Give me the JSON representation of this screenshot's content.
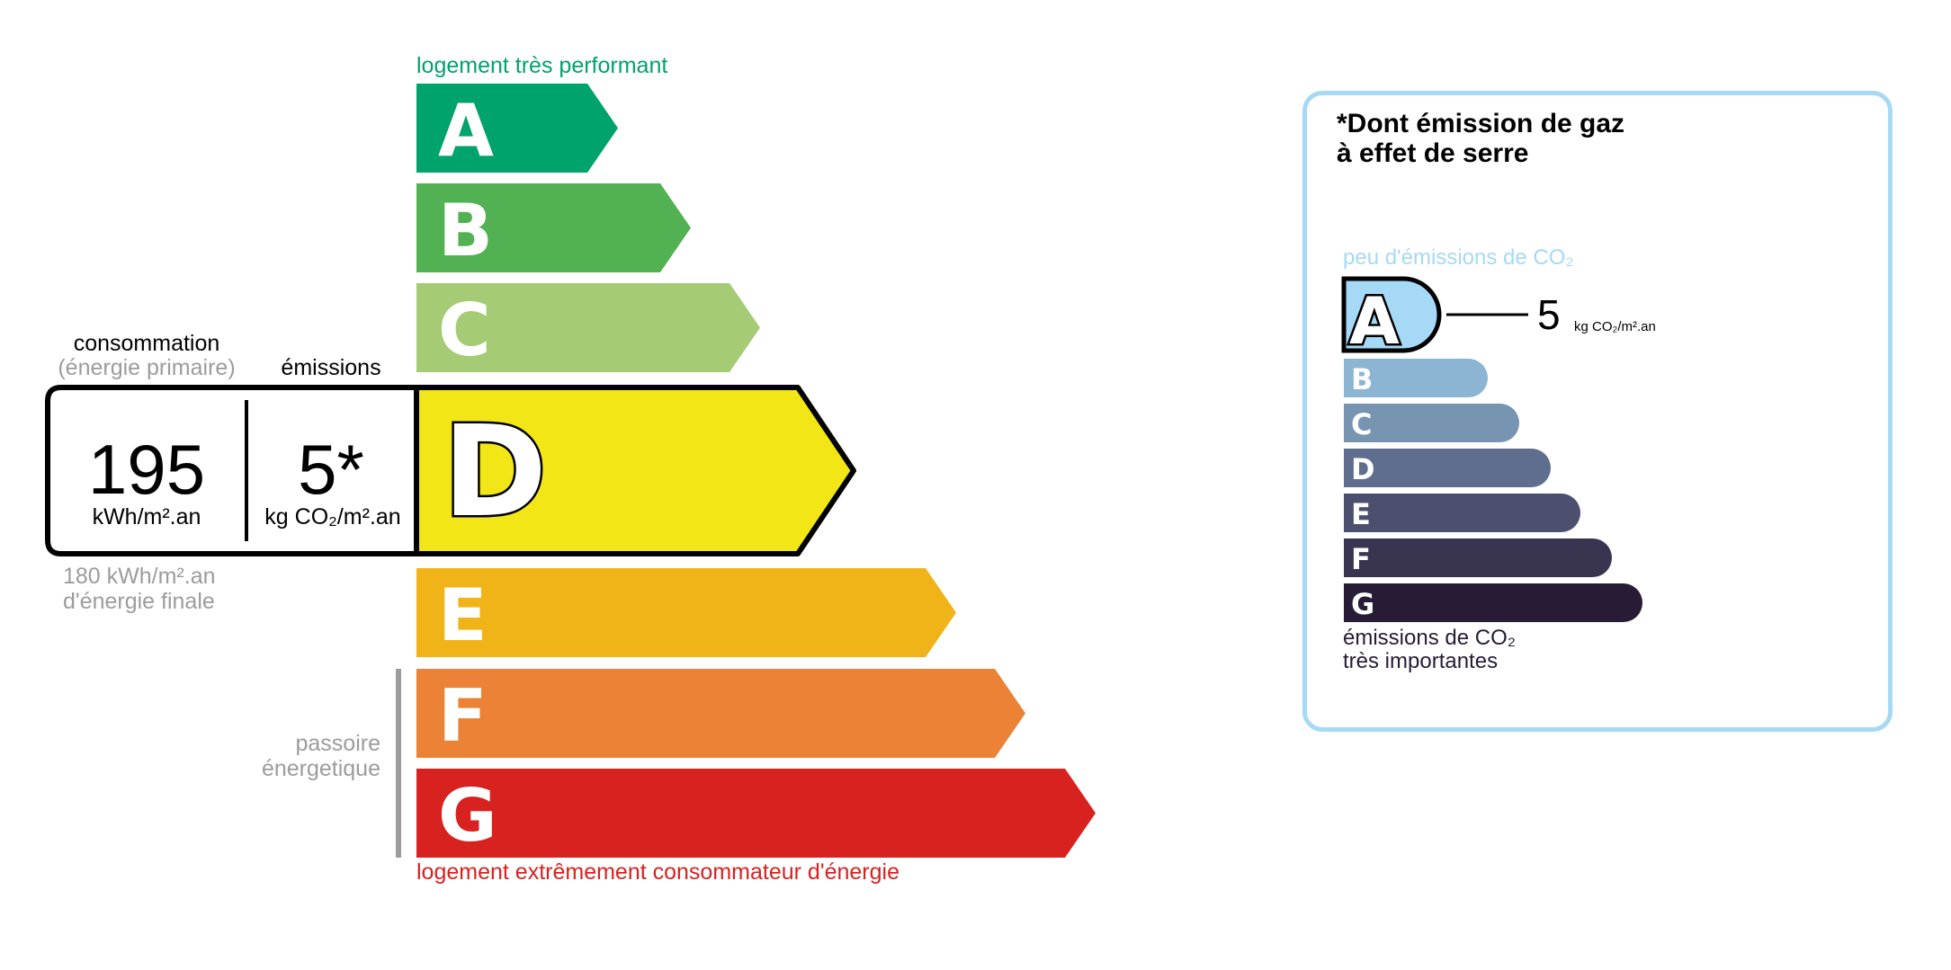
{
  "energy": {
    "top_label": "logement très performant",
    "bottom_label": "logement extrêmement consommateur d'énergie",
    "passoire_label_1": "passoire",
    "passoire_label_2": "énergetique",
    "current_class": "D",
    "classes": [
      {
        "letter": "A",
        "color": "#00a36c"
      },
      {
        "letter": "B",
        "color": "#52b153"
      },
      {
        "letter": "C",
        "color": "#a5cc74"
      },
      {
        "letter": "D",
        "color": "#f2e617"
      },
      {
        "letter": "E",
        "color": "#f0b419"
      },
      {
        "letter": "F",
        "color": "#eb8235"
      },
      {
        "letter": "G",
        "color": "#d7221f"
      }
    ],
    "consumption_header_1": "consommation",
    "consumption_header_2": "(énergie primaire)",
    "emissions_header": "émissions",
    "consumption_value": "195",
    "consumption_unit": "kWh/m².an",
    "emissions_value": "5*",
    "emissions_unit": "kg CO₂/m².an",
    "final_energy_1": "180 kWh/m².an",
    "final_energy_2": "d'énergie finale",
    "top_label_color": "#00a36c",
    "bottom_label_color": "#d7221f"
  },
  "ges": {
    "title_1": "*Dont émission de gaz",
    "title_2": "à effet de serre",
    "top_label": "peu d'émissions de CO₂",
    "bottom_label_1": "émissions de CO₂",
    "bottom_label_2": "très importantes",
    "current_class": "A",
    "value": "5",
    "unit": "kg CO₂/m².an",
    "border_color": "#a6d9f5",
    "classes": [
      {
        "letter": "A",
        "color": "#a6d9f5"
      },
      {
        "letter": "B",
        "color": "#8cb4d3"
      },
      {
        "letter": "C",
        "color": "#7794b1"
      },
      {
        "letter": "D",
        "color": "#5f6d8e"
      },
      {
        "letter": "E",
        "color": "#4d4f6f"
      },
      {
        "letter": "F",
        "color": "#393551"
      },
      {
        "letter": "G",
        "color": "#281b35"
      }
    ]
  }
}
